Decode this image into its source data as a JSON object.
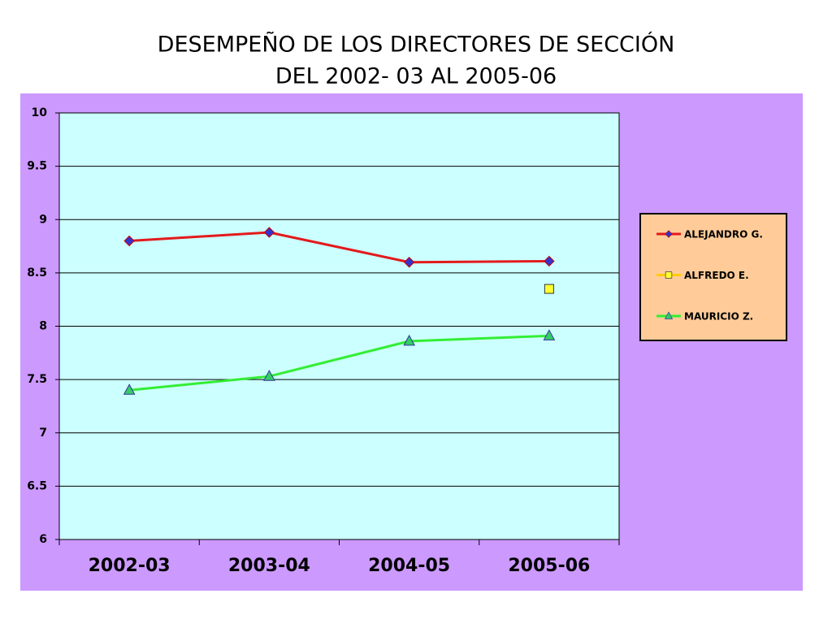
{
  "chart_data": {
    "type": "line",
    "title": [
      "DESEMPEÑO DE LOS DIRECTORES DE SECCIÓN",
      "DEL 2002- 03 AL 2005-06"
    ],
    "categories": [
      "2002-03",
      "2003-04",
      "2004-05",
      "2005-06"
    ],
    "series": [
      {
        "name": "ALEJANDRO G.",
        "color": "#e31a1c",
        "marker": "diamond",
        "marker_color": "#3333cc",
        "values": [
          8.8,
          8.88,
          8.6,
          8.61
        ]
      },
      {
        "name": "ALFREDO E.",
        "color": "#ffcc00",
        "marker": "square",
        "marker_color": "#ffff33",
        "values": [
          null,
          null,
          null,
          8.35
        ]
      },
      {
        "name": "MAURICIO Z.",
        "color": "#33ee33",
        "marker": "triangle",
        "marker_color": "#33cc66",
        "values": [
          7.4,
          7.53,
          7.86,
          7.91
        ]
      }
    ],
    "ylim": [
      6,
      10
    ],
    "yticks": [
      6,
      6.5,
      7,
      7.5,
      8,
      8.5,
      9,
      9.5,
      10
    ],
    "grid": true,
    "legend": "right"
  }
}
